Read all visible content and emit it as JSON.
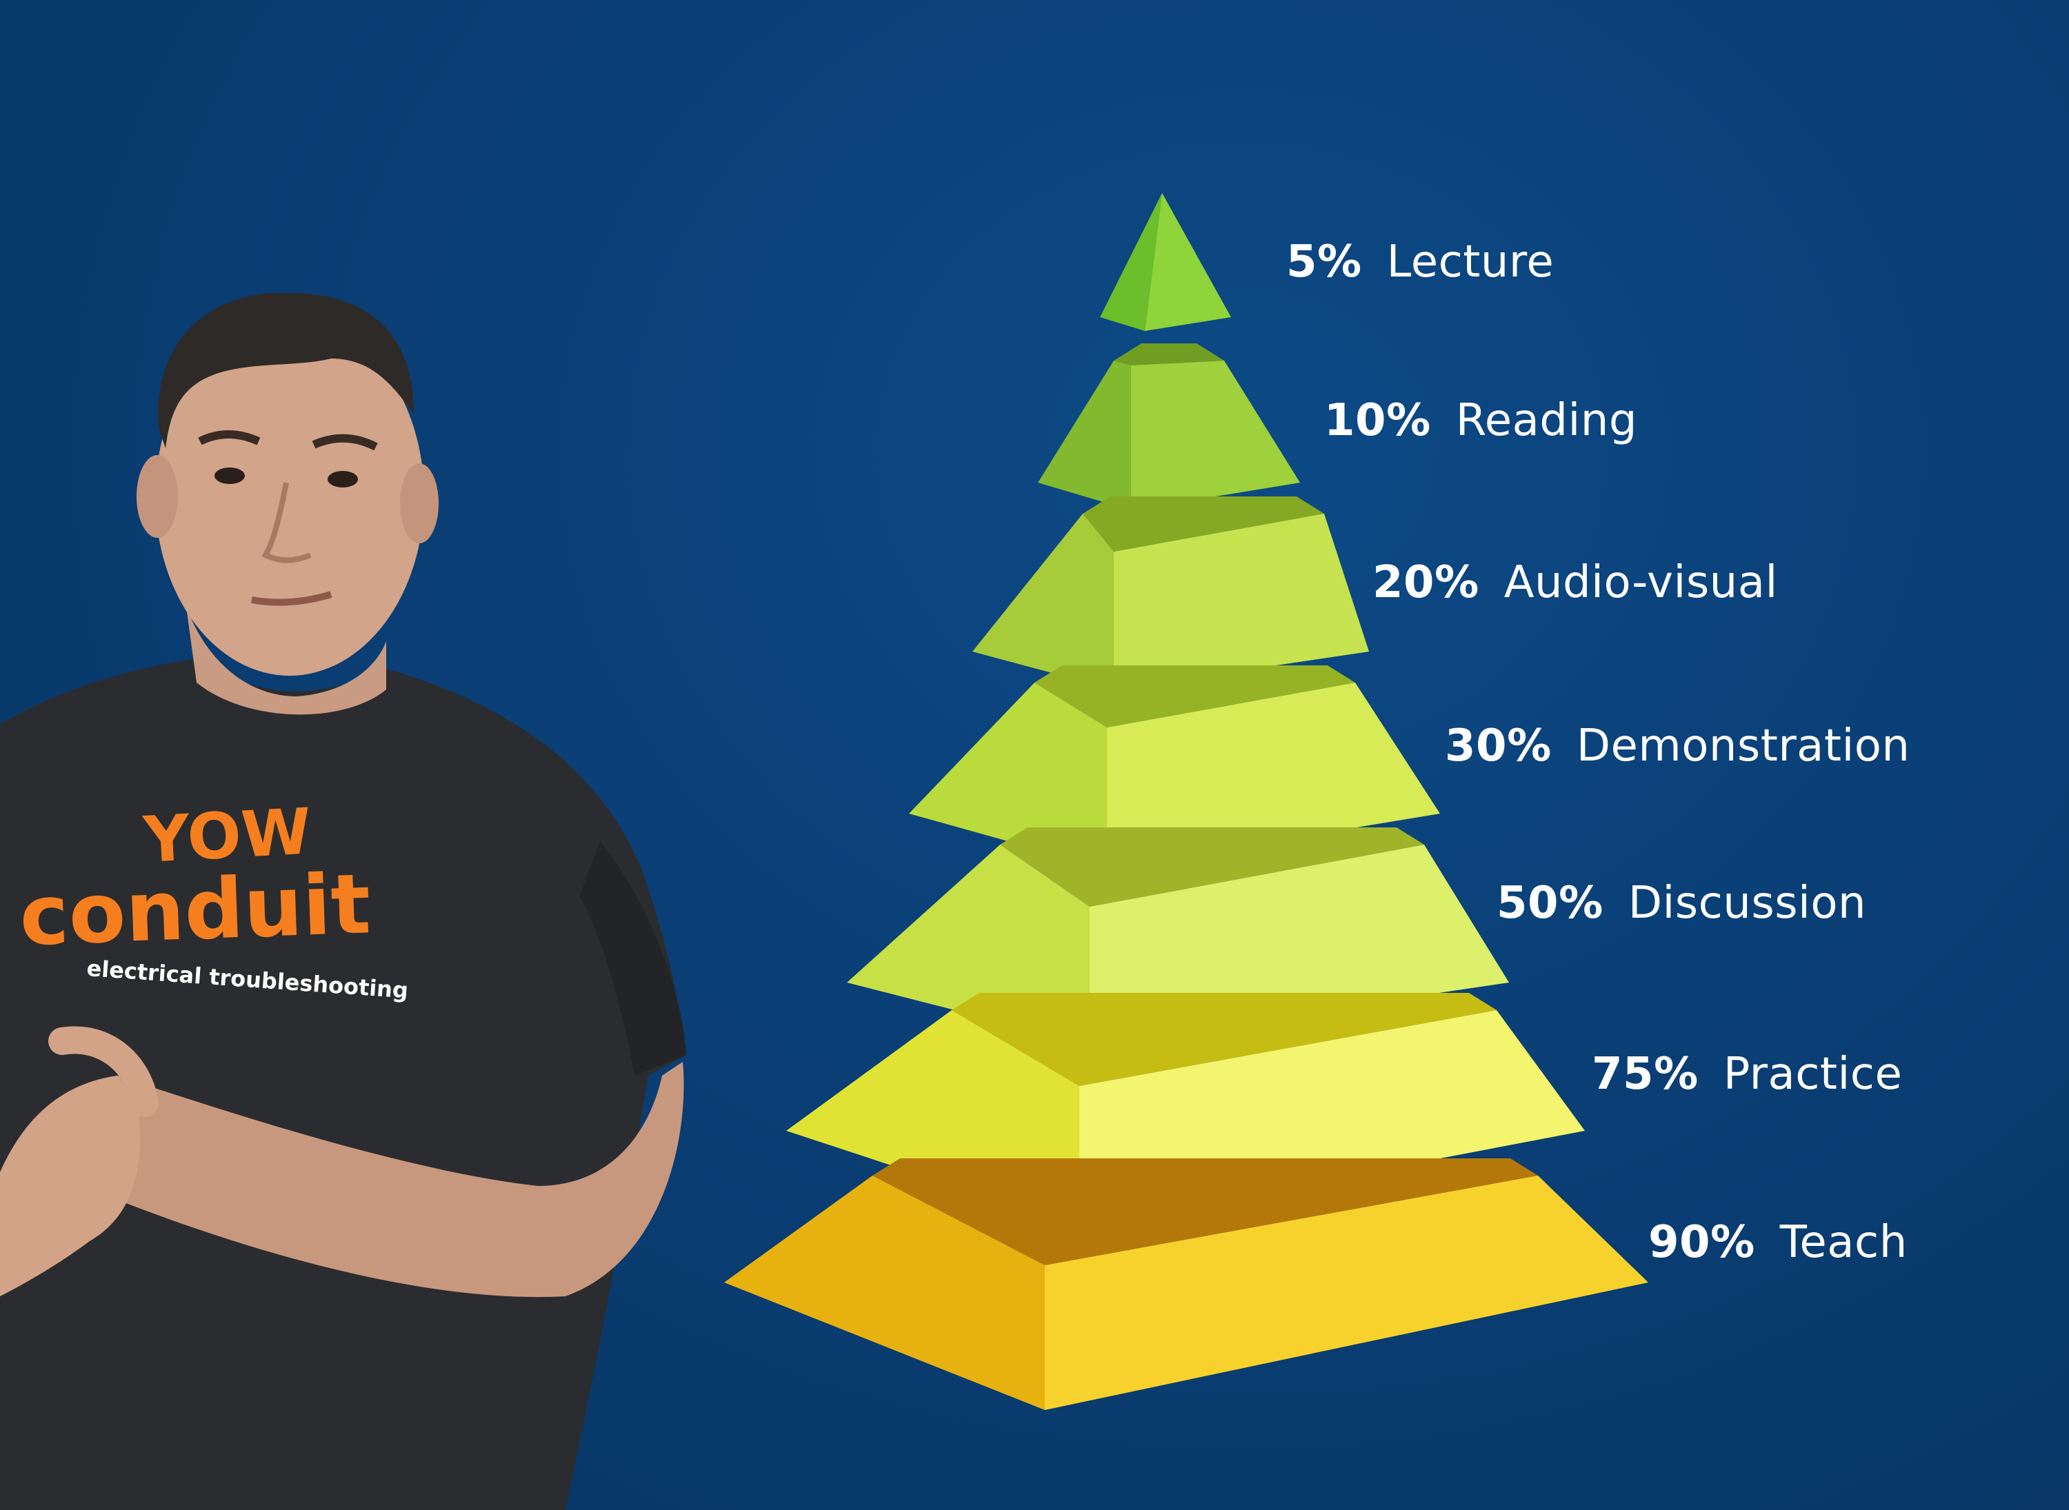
{
  "diagram": {
    "levels": [
      {
        "percent": "5%",
        "label": "Lecture",
        "colors": {
          "left": "#6cbe2a",
          "right": "#8ed43a",
          "top": "#5ea823"
        }
      },
      {
        "percent": "10%",
        "label": "Reading",
        "colors": {
          "left": "#82b92f",
          "right": "#9ed13b",
          "top": "#6f9e22"
        }
      },
      {
        "percent": "20%",
        "label": "Audio-visual",
        "colors": {
          "left": "#a6cc3a",
          "right": "#c6e34f",
          "top": "#86a924"
        }
      },
      {
        "percent": "30%",
        "label": "Demonstration",
        "colors": {
          "left": "#b9dc3c",
          "right": "#d6eb55",
          "top": "#96b326"
        }
      },
      {
        "percent": "50%",
        "label": "Discussion",
        "colors": {
          "left": "#c6e046",
          "right": "#ddf06b",
          "top": "#a0b42a"
        }
      },
      {
        "percent": "75%",
        "label": "Practice",
        "colors": {
          "left": "#e0e333",
          "right": "#f3f56e",
          "top": "#c5bd14"
        }
      },
      {
        "percent": "90%",
        "label": "Teach",
        "colors": {
          "left": "#e7b210",
          "right": "#f8d22c",
          "top": "#b4780a"
        }
      }
    ]
  },
  "presenter": {
    "shirt_logo_line1": "YOW",
    "shirt_logo_line2": "conduit",
    "shirt_tagline": "electrical troubleshooting"
  },
  "colors": {
    "background": "#0a3f76",
    "label_text": "#ffffff",
    "logo_orange": "#f57f1f"
  }
}
